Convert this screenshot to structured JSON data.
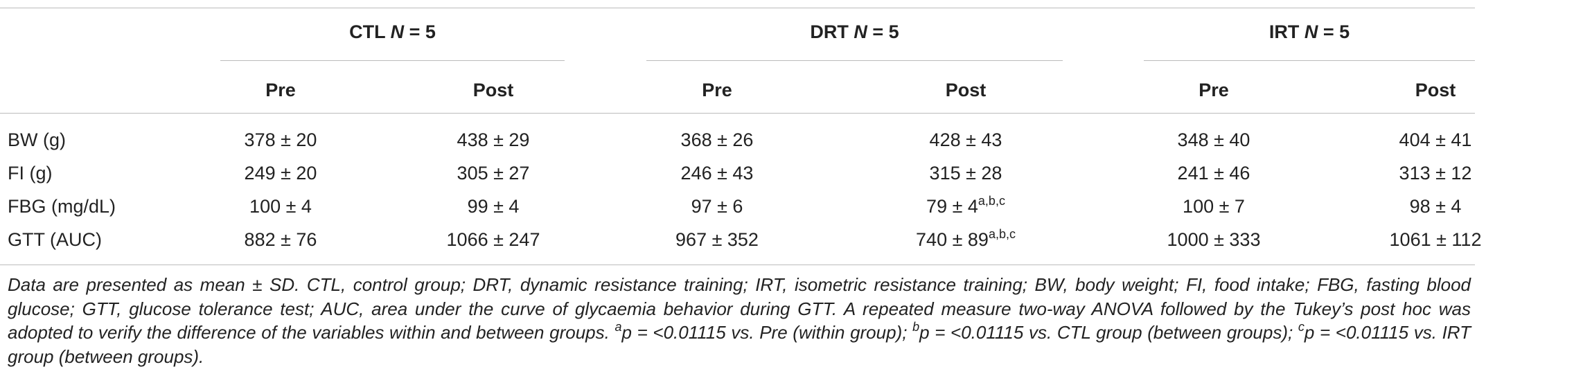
{
  "table": {
    "groups": [
      {
        "name": "CTL",
        "n_symbol": "N",
        "n_value": "= 5"
      },
      {
        "name": "DRT",
        "n_symbol": "N",
        "n_value": "= 5"
      },
      {
        "name": "IRT",
        "n_symbol": "N",
        "n_value": "= 5"
      }
    ],
    "subheaders": [
      "Pre",
      "Post",
      "Pre",
      "Post",
      "Pre",
      "Post"
    ],
    "rows": [
      {
        "label": "BW (g)",
        "cells": [
          {
            "text": "378 ± 20"
          },
          {
            "text": "438 ± 29"
          },
          {
            "text": "368 ± 26"
          },
          {
            "text": "428 ± 43"
          },
          {
            "text": "348 ± 40"
          },
          {
            "text": "404 ± 41"
          }
        ]
      },
      {
        "label": "FI (g)",
        "cells": [
          {
            "text": "249 ± 20"
          },
          {
            "text": "305 ± 27"
          },
          {
            "text": "246 ± 43"
          },
          {
            "text": "315 ± 28"
          },
          {
            "text": "241 ± 46"
          },
          {
            "text": "313 ± 12"
          }
        ]
      },
      {
        "label": "FBG (mg/dL)",
        "cells": [
          {
            "text": "100 ± 4"
          },
          {
            "text": "99 ± 4"
          },
          {
            "text": "97 ± 6"
          },
          {
            "text": "79 ± 4",
            "sup": "a,b,c"
          },
          {
            "text": "100 ± 7"
          },
          {
            "text": "98 ± 4"
          }
        ]
      },
      {
        "label": "GTT (AUC)",
        "cells": [
          {
            "text": "882 ± 76"
          },
          {
            "text": "1066 ± 247"
          },
          {
            "text": "967 ± 352"
          },
          {
            "text": "740 ± 89",
            "sup": "a,b,c"
          },
          {
            "text": "1000 ± 333"
          },
          {
            "text": "1061 ± 112"
          }
        ]
      }
    ]
  },
  "footnote": {
    "text": "Data are presented as mean ± SD. CTL, control group; DRT, dynamic resistance training; IRT, isometric resistance training; BW, body weight; FI, food intake; FBG, fasting blood glucose; GTT, glucose tolerance test; AUC, area under the curve of glycaemia behavior during GTT. A repeated measure two-way ANOVA followed by the Tukey’s post hoc was adopted to verify the difference of the variables within and between groups.",
    "notes": [
      {
        "mark": "a",
        "text": "p = <0.01115 vs. Pre (within group);"
      },
      {
        "mark": "b",
        "text": "p = <0.01115 vs. CTL group (between groups);"
      },
      {
        "mark": "c",
        "text": "p = <0.01115 vs. IRT group (between groups)."
      }
    ]
  }
}
